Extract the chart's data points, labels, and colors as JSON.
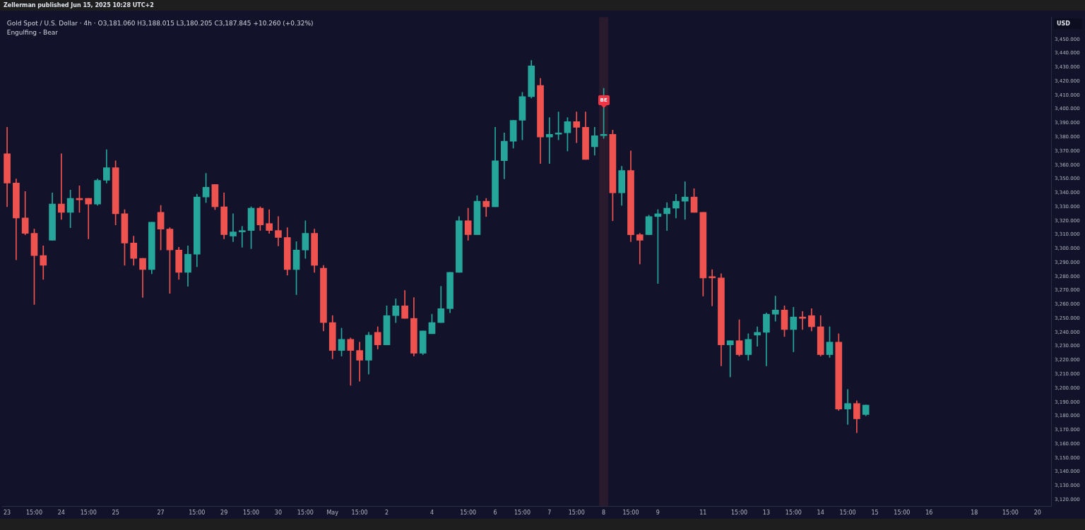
{
  "chart_data": {
    "type": "candlestick",
    "title": "Gold Spot / U.S. Dollar · 4h · O3,181.060 H3,188.015 L3,180.205 C3,187.845 +10.260 (+0.32%)",
    "subtitle": "Engulfing - Bear",
    "ylabel": "USD",
    "annotations": [
      "Zellerman published Jun 15, 2025 10:28 UTC+2",
      {
        "text": "BE",
        "x": "8",
        "y": 3406
      }
    ],
    "bands": [
      {
        "axis": "x",
        "from": "8",
        "to": "8",
        "color": "#2a1a2e"
      }
    ],
    "categories": [
      "23",
      null,
      null,
      "15:00",
      null,
      null,
      "24",
      null,
      null,
      "15:00",
      null,
      null,
      "25",
      null,
      null,
      null,
      null,
      "27",
      null,
      null,
      null,
      "15:00",
      null,
      null,
      "29",
      null,
      null,
      "15:00",
      null,
      null,
      "30",
      null,
      null,
      "15:00",
      null,
      null,
      "May",
      null,
      null,
      "15:00",
      null,
      null,
      "2",
      null,
      null,
      null,
      null,
      "4",
      null,
      null,
      null,
      "15:00",
      null,
      null,
      "6",
      null,
      null,
      "15:00",
      null,
      null,
      "7",
      null,
      null,
      "15:00",
      null,
      null,
      "8",
      null,
      null,
      "15:00",
      null,
      null,
      "9",
      null,
      null,
      null,
      null,
      "11",
      null,
      null,
      null,
      "15:00",
      null,
      null,
      "13",
      null,
      null,
      "15:00",
      null,
      null,
      "14",
      null,
      null,
      "15:00",
      null,
      null,
      "15",
      null,
      null,
      "15:00",
      null,
      null,
      "16",
      null,
      null,
      null,
      null,
      "18",
      null,
      null,
      null,
      "15:00",
      null,
      null,
      "20",
      null
    ],
    "ohlc": [
      [
        3368,
        3387,
        3330,
        3347
      ],
      [
        3347,
        3350,
        3292,
        3322
      ],
      [
        3322,
        3341,
        3310,
        3311
      ],
      [
        3311,
        3314,
        3260,
        3295
      ],
      [
        3295,
        3302,
        3278,
        3288
      ],
      [
        3306,
        3340,
        3306,
        3332
      ],
      [
        3332,
        3368,
        3321,
        3326
      ],
      [
        3326,
        3342,
        3315,
        3336
      ],
      [
        3336,
        3345,
        3326,
        3335
      ],
      [
        3336,
        3336,
        3307,
        3332
      ],
      [
        3332,
        3350,
        3331,
        3349
      ],
      [
        3349,
        3371,
        3347,
        3358
      ],
      [
        3358,
        3363,
        3317,
        3325
      ],
      [
        3325,
        3328,
        3288,
        3304
      ],
      [
        3304,
        3309,
        3288,
        3293
      ],
      [
        3293,
        3293,
        3265,
        3285
      ],
      [
        3285,
        3319,
        3282,
        3319
      ],
      [
        3326,
        3331,
        3299,
        3314
      ],
      [
        3314,
        3315,
        3268,
        3299
      ],
      [
        3299,
        3301,
        3278,
        3283
      ],
      [
        3283,
        3302,
        3273,
        3296
      ],
      [
        3296,
        3339,
        3287,
        3337
      ],
      [
        3337,
        3354,
        3333,
        3344
      ],
      [
        3346,
        3346,
        3328,
        3330
      ],
      [
        3330,
        3340,
        3307,
        3310
      ],
      [
        3309,
        3325,
        3305,
        3312
      ],
      [
        3312,
        3316,
        3301,
        3313
      ],
      [
        3313,
        3330,
        3300,
        3329
      ],
      [
        3329,
        3330,
        3313,
        3317
      ],
      [
        3318,
        3328,
        3311,
        3313
      ],
      [
        3313,
        3323,
        3302,
        3308
      ],
      [
        3308,
        3315,
        3281,
        3285
      ],
      [
        3285,
        3305,
        3267,
        3299
      ],
      [
        3299,
        3320,
        3293,
        3311
      ],
      [
        3311,
        3314,
        3283,
        3288
      ],
      [
        3286,
        3288,
        3241,
        3247
      ],
      [
        3247,
        3252,
        3221,
        3227
      ],
      [
        3227,
        3243,
        3223,
        3235
      ],
      [
        3235,
        3236,
        3202,
        3227
      ],
      [
        3227,
        3233,
        3205,
        3220
      ],
      [
        3220,
        3240,
        3210,
        3238
      ],
      [
        3240,
        3244,
        3228,
        3231
      ],
      [
        3231,
        3259,
        3231,
        3252
      ],
      [
        3252,
        3264,
        3247,
        3259
      ],
      [
        3259,
        3270,
        3250,
        3250
      ],
      [
        3250,
        3265,
        3223,
        3225
      ],
      [
        3225,
        3241,
        3224,
        3241
      ],
      [
        3239,
        3253,
        3239,
        3247
      ],
      [
        3247,
        3273,
        3247,
        3257
      ],
      [
        3257,
        3283,
        3254,
        3283
      ],
      [
        3283,
        3323,
        3283,
        3320
      ],
      [
        3320,
        3329,
        3306,
        3310
      ],
      [
        3310,
        3338,
        3310,
        3334
      ],
      [
        3334,
        3336,
        3323,
        3330
      ],
      [
        3330,
        3387,
        3330,
        3363
      ],
      [
        3363,
        3383,
        3350,
        3377
      ],
      [
        3377,
        3392,
        3372,
        3392
      ],
      [
        3392,
        3412,
        3378,
        3409
      ],
      [
        3409,
        3435,
        3408,
        3431
      ],
      [
        3417,
        3422,
        3361,
        3380
      ],
      [
        3380,
        3394,
        3361,
        3382
      ],
      [
        3382,
        3398,
        3378,
        3383
      ],
      [
        3383,
        3394,
        3370,
        3391
      ],
      [
        3391,
        3398,
        3376,
        3387
      ],
      [
        3387,
        3398,
        3364,
        3364
      ],
      [
        3373,
        3387,
        3367,
        3381
      ],
      [
        3381,
        3415,
        3379,
        3382
      ],
      [
        3382,
        3385,
        3320,
        3340
      ],
      [
        3340,
        3359,
        3331,
        3356
      ],
      [
        3356,
        3370,
        3305,
        3310
      ],
      [
        3310,
        3311,
        3289,
        3306
      ],
      [
        3310,
        3324,
        3310,
        3323
      ],
      [
        3323,
        3328,
        3275,
        3325
      ],
      [
        3325,
        3333,
        3313,
        3329
      ],
      [
        3329,
        3339,
        3322,
        3334
      ],
      [
        3334,
        3348,
        3321,
        3337
      ],
      [
        3337,
        3343,
        3326,
        3326
      ],
      [
        3326,
        3326,
        3266,
        3279
      ],
      [
        3280,
        3285,
        3259,
        3279
      ],
      [
        3279,
        3282,
        3216,
        3231
      ],
      [
        3231,
        3234,
        3208,
        3234
      ],
      [
        3234,
        3249,
        3223,
        3224
      ],
      [
        3224,
        3239,
        3220,
        3235
      ],
      [
        3238,
        3244,
        3230,
        3240
      ],
      [
        3240,
        3254,
        3216,
        3253
      ],
      [
        3253,
        3266,
        3248,
        3256
      ],
      [
        3256,
        3259,
        3237,
        3242
      ],
      [
        3242,
        3258,
        3226,
        3251
      ],
      [
        3251,
        3255,
        3242,
        3250
      ],
      [
        3252,
        3257,
        3241,
        3244
      ],
      [
        3244,
        3252,
        3223,
        3224
      ],
      [
        3224,
        3244,
        3222,
        3233
      ],
      [
        3233,
        3239,
        3184,
        3185
      ],
      [
        3185,
        3199,
        3174,
        3189
      ],
      [
        3189,
        3191,
        3168,
        3178
      ],
      [
        3181.06,
        3188.015,
        3180.205,
        3187.845
      ],
      null,
      null,
      null,
      null,
      null,
      null,
      null,
      null,
      null,
      null,
      null,
      null,
      null,
      null,
      null,
      null,
      null,
      null,
      null,
      null
    ],
    "colors": [
      "#ef5350",
      "#ef5350",
      "#ef5350",
      "#ef5350",
      "#ef5350",
      "#26a69a",
      "#ef5350",
      "#26a69a",
      "#ef5350",
      "#ef5350",
      "#26a69a",
      "#26a69a",
      "#ef5350",
      "#ef5350",
      "#ef5350",
      "#ef5350",
      "#26a69a",
      "#ef5350",
      "#ef5350",
      "#ef5350",
      "#26a69a",
      "#26a69a",
      "#26a69a",
      "#ef5350",
      "#ef5350",
      "#26a69a",
      "#26a69a",
      "#26a69a",
      "#ef5350",
      "#ef5350",
      "#ef5350",
      "#ef5350",
      "#26a69a",
      "#26a69a",
      "#ef5350",
      "#ef5350",
      "#ef5350",
      "#26a69a",
      "#ef5350",
      "#ef5350",
      "#26a69a",
      "#ef5350",
      "#26a69a",
      "#26a69a",
      "#ef5350",
      "#ef5350",
      "#26a69a",
      "#26a69a",
      "#26a69a",
      "#26a69a",
      "#26a69a",
      "#ef5350",
      "#26a69a",
      "#ef5350",
      "#26a69a",
      "#26a69a",
      "#26a69a",
      "#26a69a",
      "#26a69a",
      "#ef5350",
      "#26a69a",
      "#26a69a",
      "#26a69a",
      "#ef5350",
      "#ef5350",
      "#26a69a",
      "#26a69a",
      "#ef5350",
      "#26a69a",
      "#ef5350",
      "#ef5350",
      "#26a69a",
      "#26a69a",
      "#26a69a",
      "#26a69a",
      "#26a69a",
      "#ef5350",
      "#ef5350",
      "#ef5350",
      "#ef5350",
      "#26a69a",
      "#ef5350",
      "#26a69a",
      "#26a69a",
      "#26a69a",
      "#26a69a",
      "#ef5350",
      "#26a69a",
      "#ef5350",
      "#ef5350",
      "#ef5350",
      "#26a69a",
      "#ef5350",
      "#26a69a",
      "#ef5350",
      "#26a69a",
      null,
      null,
      null,
      null,
      null,
      null,
      null,
      null,
      null,
      null,
      null,
      null,
      null,
      null,
      null,
      null,
      null,
      null,
      null,
      null
    ],
    "ylim": [
      3115.5,
      3466
    ],
    "yticks": [
      {
        "value": 3120,
        "label": "3,120.000"
      },
      {
        "value": 3130,
        "label": "3,130.000"
      },
      {
        "value": 3140,
        "label": "3,140.000"
      },
      {
        "value": 3150,
        "label": "3,150.000"
      },
      {
        "value": 3160,
        "label": "3,160.000"
      },
      {
        "value": 3170,
        "label": "3,170.000"
      },
      {
        "value": 3180,
        "label": "3,180.000"
      },
      {
        "value": 3190,
        "label": "3,190.000"
      },
      {
        "value": 3200,
        "label": "3,200.000"
      },
      {
        "value": 3210,
        "label": "3,210.000"
      },
      {
        "value": 3220,
        "label": "3,220.000"
      },
      {
        "value": 3230,
        "label": "3,230.000"
      },
      {
        "value": 3240,
        "label": "3,240.000"
      },
      {
        "value": 3250,
        "label": "3,250.000"
      },
      {
        "value": 3260,
        "label": "3,260.000"
      },
      {
        "value": 3270,
        "label": "3,270.000"
      },
      {
        "value": 3280,
        "label": "3,280.000"
      },
      {
        "value": 3290,
        "label": "3,290.000"
      },
      {
        "value": 3300,
        "label": "3,300.000"
      },
      {
        "value": 3310,
        "label": "3,310.000"
      },
      {
        "value": 3320,
        "label": "3,320.000"
      },
      {
        "value": 3330,
        "label": "3,330.000"
      },
      {
        "value": 3340,
        "label": "3,340.000"
      },
      {
        "value": 3350,
        "label": "3,350.000"
      },
      {
        "value": 3360,
        "label": "3,360.000"
      },
      {
        "value": 3370,
        "label": "3,370.000"
      },
      {
        "value": 3380,
        "label": "3,380.000"
      },
      {
        "value": 3390,
        "label": "3,390.000"
      },
      {
        "value": 3400,
        "label": "3,400.000"
      },
      {
        "value": 3410,
        "label": "3,410.000"
      },
      {
        "value": 3420,
        "label": "3,420.000"
      },
      {
        "value": 3430,
        "label": "3,430.000"
      },
      {
        "value": 3440,
        "label": "3,440.000"
      },
      {
        "value": 3450,
        "label": "3,450.000"
      }
    ],
    "grid": false,
    "legend": false
  }
}
